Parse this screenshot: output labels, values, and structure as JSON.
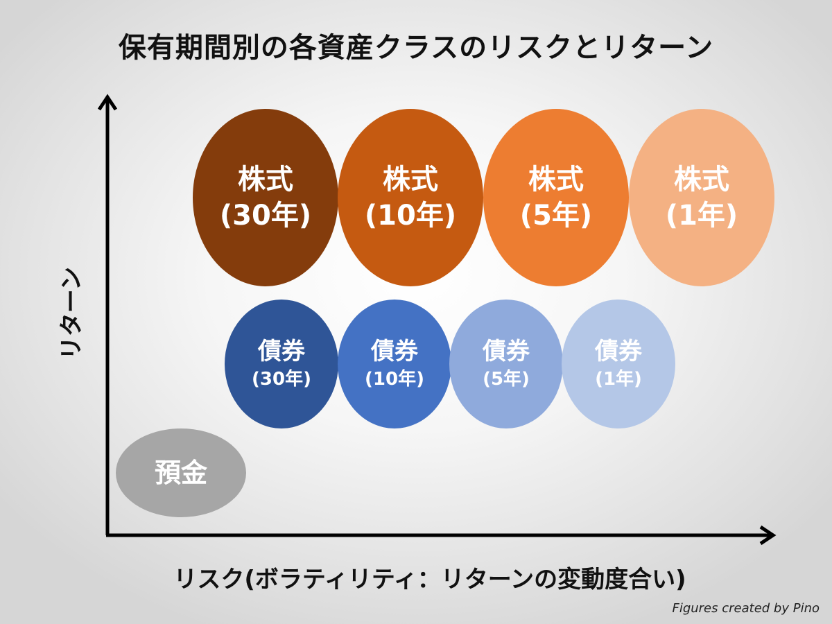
{
  "title": "保有期間別の各資産クラスのリスクとリターン",
  "axes": {
    "y_label": "リターン",
    "x_label": "リスク(ボラティリティ：リターンの変動度合い)"
  },
  "colors": {
    "stock_30": "#843c0c",
    "stock_10": "#c55a11",
    "stock_5": "#ed7d31",
    "stock_1": "#f4b183",
    "bond_30": "#2f5597",
    "bond_10": "#4472c4",
    "bond_5": "#8faadc",
    "bond_1": "#b4c7e7",
    "deposit": "#a6a6a6"
  },
  "stocks": [
    {
      "name": "株式",
      "period": "(30年)"
    },
    {
      "name": "株式",
      "period": "(10年)"
    },
    {
      "name": "株式",
      "period": "(5年)"
    },
    {
      "name": "株式",
      "period": "(1年)"
    }
  ],
  "bonds": [
    {
      "name": "債券",
      "period": "(30年)"
    },
    {
      "name": "債券",
      "period": "(10年)"
    },
    {
      "name": "債券",
      "period": "(5年)"
    },
    {
      "name": "債券",
      "period": "(1年)"
    }
  ],
  "deposit": {
    "name": "預金"
  },
  "credit": "Figures created by Pino"
}
